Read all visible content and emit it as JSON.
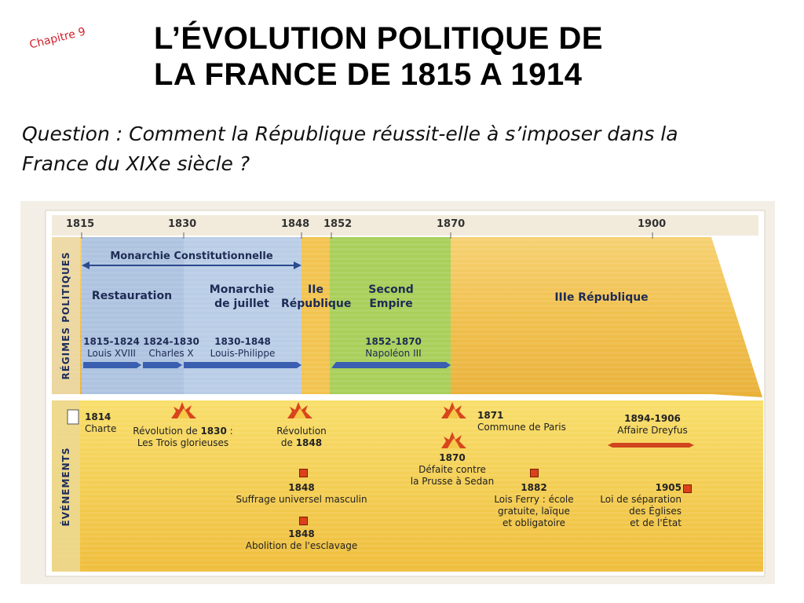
{
  "slide": {
    "chapter": "Chapitre 9",
    "title_line1": "L’ÉVOLUTION POLITIQUE DE",
    "title_line2": "LA FRANCE DE 1815 A 1914",
    "question_line1": "Question : Comment la République réussit-elle à s’imposer dans la",
    "question_line2": "France du XIXe siècle ?"
  },
  "timeline": {
    "years": [
      "1815",
      "1830",
      "1848",
      "1852",
      "1870",
      "1900"
    ],
    "side_regimes": "RÉGIMES POLITIQUES",
    "side_events": "ÉVÉNEMENTS",
    "monarchie_constitutionnelle": "Monarchie Constitutionnelle",
    "regimes": [
      {
        "name": "Restauration"
      },
      {
        "name_l1": "Monarchie",
        "name_l2": "de juillet"
      },
      {
        "name_l1": "IIe",
        "name_l2": "République"
      },
      {
        "name_l1": "Second",
        "name_l2": "Empire"
      },
      {
        "name": "IIIe République"
      }
    ],
    "spans": [
      {
        "years": "1815-1824",
        "who": "Louis XVIII"
      },
      {
        "years": "1824-1830",
        "who": "Charles X"
      },
      {
        "years": "1830-1848",
        "who": "Louis-Philippe"
      },
      {
        "years": "1852-1870",
        "who": "Napoléon III"
      }
    ],
    "events": [
      {
        "year": "1814",
        "text": "Charte"
      },
      {
        "text_a": "Révolution de ",
        "year": "1830",
        "text_b": " :",
        "text2": "Les Trois glorieuses"
      },
      {
        "text": "Révolution",
        "text2a": "de ",
        "year": "1848"
      },
      {
        "year": "1848",
        "text": "Suffrage universel masculin"
      },
      {
        "year": "1848",
        "text": "Abolition de l'esclavage"
      },
      {
        "year": "1871",
        "text": "Commune de Paris"
      },
      {
        "year": "1870",
        "text": "Défaite contre",
        "text2": "la Prusse à Sedan"
      },
      {
        "year": "1882",
        "text": "Lois Ferry : école",
        "text2": "gratuite, laïque",
        "text3": "et obligatoire"
      },
      {
        "year": "1894-1906",
        "text": "Affaire Dreyfus"
      },
      {
        "year": "1905",
        "text": "Loi de séparation",
        "text2": "des Églises",
        "text3": "et de l'État"
      }
    ]
  }
}
